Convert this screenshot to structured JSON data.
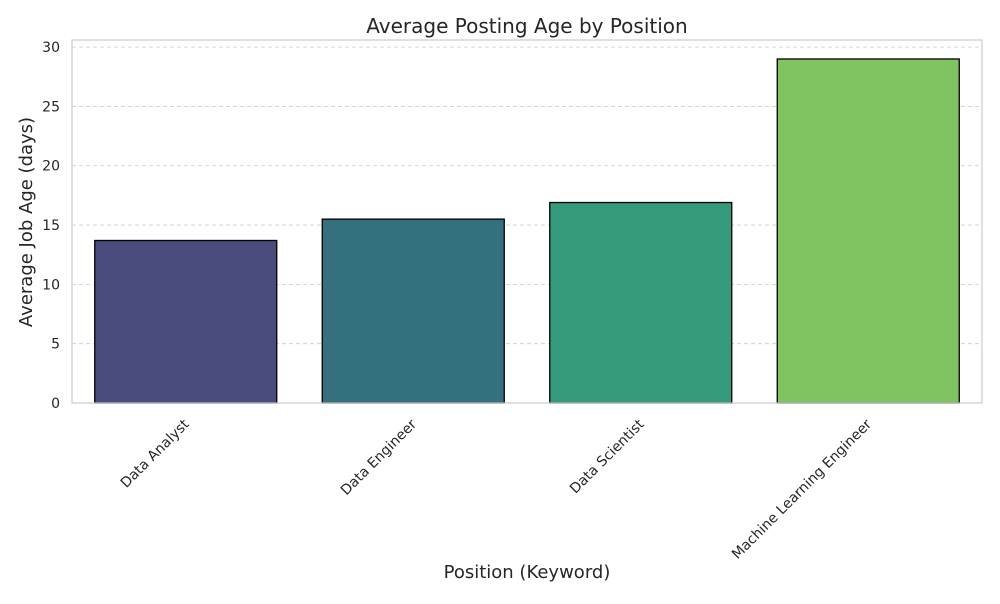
{
  "chart_data": {
    "type": "bar",
    "title": "Average Posting Age by Position",
    "xlabel": "Position (Keyword)",
    "ylabel": "Average Job Age (days)",
    "categories": [
      "Data Analyst",
      "Data Engineer",
      "Data Scientist",
      "Machine Learning Engineer"
    ],
    "values": [
      13.7,
      15.5,
      16.9,
      29.0
    ],
    "colors": [
      "#4a4b7d",
      "#35707f",
      "#35997c",
      "#80c361"
    ],
    "edge_color": "#000000",
    "ylim": [
      0,
      30.6
    ],
    "yticks": [
      0,
      5,
      10,
      15,
      20,
      25,
      30
    ],
    "grid": "y",
    "grid_color": "#cccccc",
    "spine_color": "#cccccc",
    "legend": "none"
  }
}
